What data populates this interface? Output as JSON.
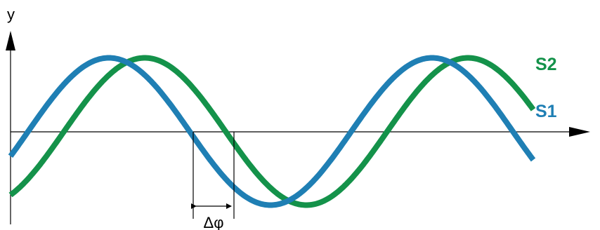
{
  "axis": {
    "y_label": "y"
  },
  "series": [
    {
      "name": "S1",
      "color": "#1f7fb4",
      "phase_deg": 0
    },
    {
      "name": "S2",
      "color": "#14924a",
      "phase_deg": -40
    }
  ],
  "phase_shift": {
    "label": "Δφ"
  },
  "colors": {
    "axis": "#000000",
    "background": "#ffffff"
  }
}
